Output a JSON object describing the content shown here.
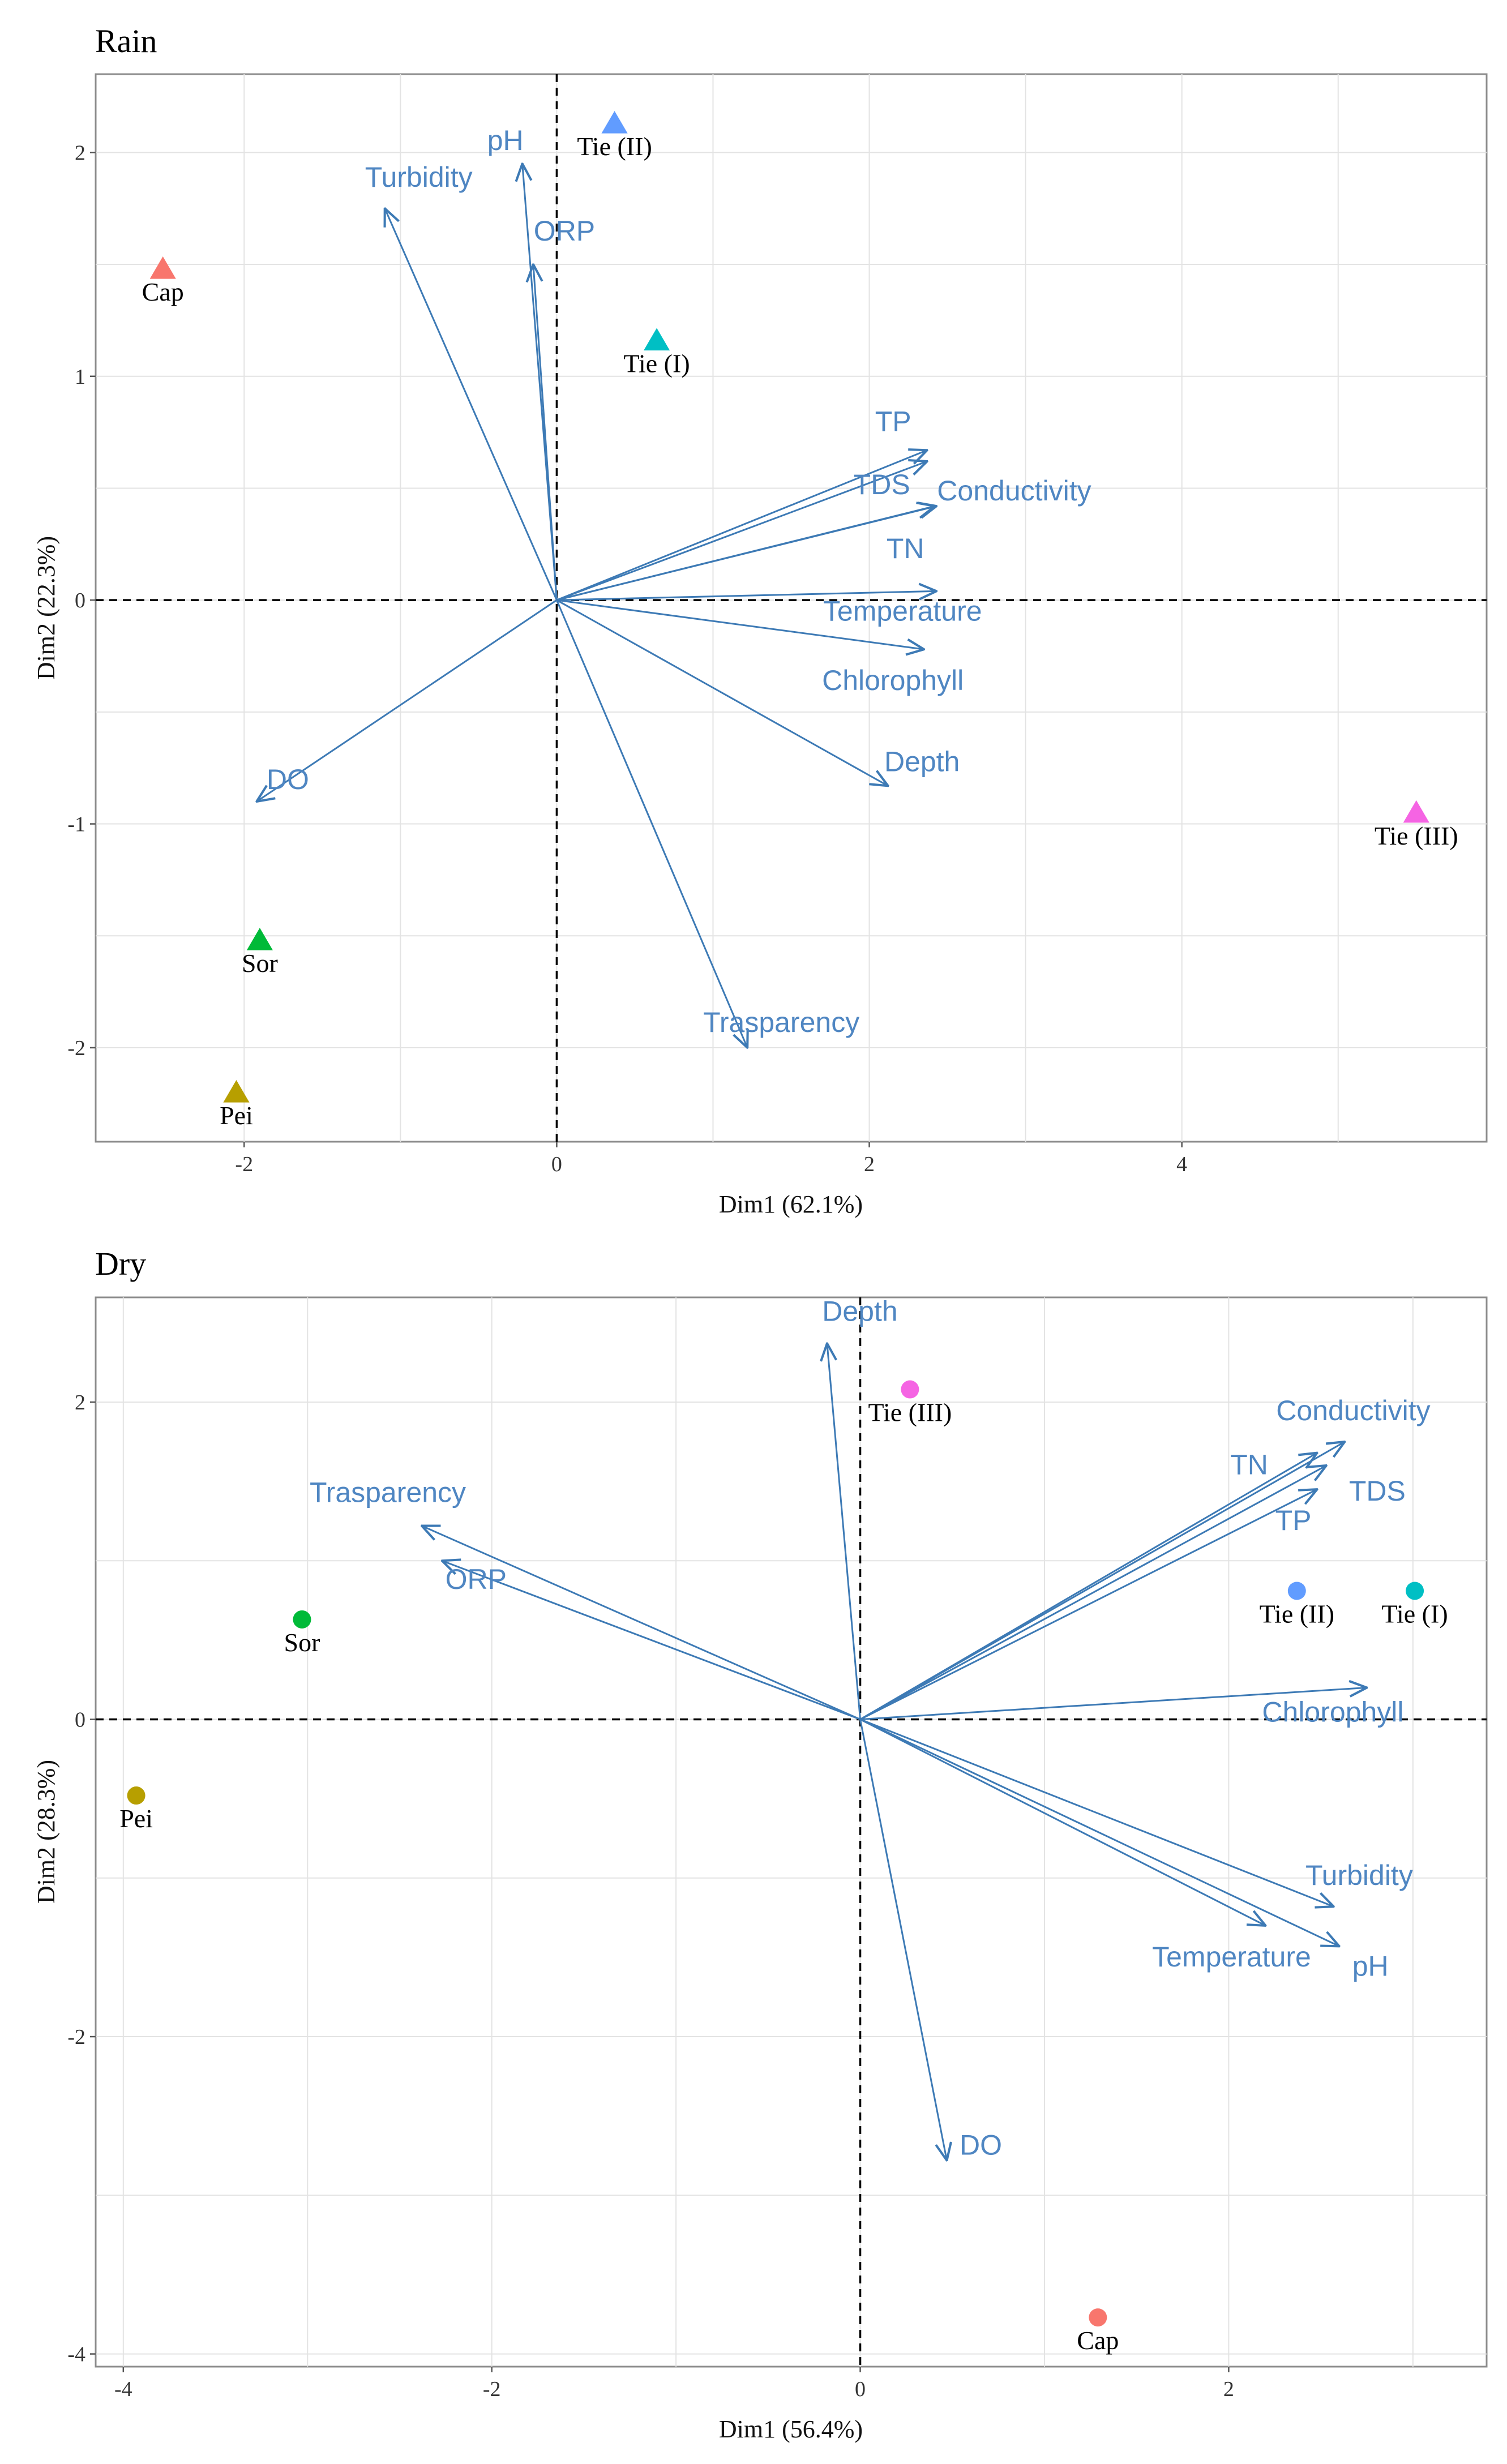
{
  "chart_data": [
    {
      "type": "scatter",
      "title": "Rain",
      "xlabel": "Dim1 (62.1%)",
      "ylabel": "Dim2 (22.3%)",
      "xlim": [
        -2.95,
        5.95
      ],
      "ylim": [
        -2.42,
        2.35
      ],
      "x_ticks": [
        -2,
        0,
        2,
        4
      ],
      "y_ticks": [
        -2,
        -1,
        0,
        1,
        2
      ],
      "x_tick_labels": [
        "-2",
        "0",
        "2",
        "4"
      ],
      "y_tick_labels": [
        "-2",
        "-1",
        "0",
        "1",
        "2"
      ],
      "marker": "triangle",
      "grid": true,
      "observations": [
        {
          "label": "Tie (II)",
          "x": 0.37,
          "y": 2.13,
          "color": "#619cff"
        },
        {
          "label": "Cap",
          "x": -2.52,
          "y": 1.48,
          "color": "#f8766d"
        },
        {
          "label": "Tie (I)",
          "x": 0.64,
          "y": 1.16,
          "color": "#00bfc4"
        },
        {
          "label": "Tie (III)",
          "x": 5.5,
          "y": -0.95,
          "color": "#f564e3"
        },
        {
          "label": "Sor",
          "x": -1.9,
          "y": -1.52,
          "color": "#00ba38"
        },
        {
          "label": "Pei",
          "x": -2.05,
          "y": -2.2,
          "color": "#b79f00"
        }
      ],
      "variables": [
        {
          "label": "Turbidity",
          "x": -1.1,
          "y": 1.75
        },
        {
          "label": "pH",
          "x": -0.22,
          "y": 1.95
        },
        {
          "label": "ORP",
          "x": -0.15,
          "y": 1.5
        },
        {
          "label": "TP",
          "x": 2.37,
          "y": 0.67
        },
        {
          "label": "TDS",
          "x": 2.37,
          "y": 0.62
        },
        {
          "label": "Conductivity",
          "x": 2.42,
          "y": 0.42
        },
        {
          "label": "TN",
          "x": 2.43,
          "y": 0.42
        },
        {
          "label": "Temperature",
          "x": 2.43,
          "y": 0.04
        },
        {
          "label": "Chlorophyll",
          "x": 2.35,
          "y": -0.22
        },
        {
          "label": "Depth",
          "x": 2.12,
          "y": -0.83
        },
        {
          "label": "DO",
          "x": -1.92,
          "y": -0.9
        },
        {
          "label": "Trasparency",
          "x": 1.22,
          "y": -2.0
        }
      ]
    },
    {
      "type": "scatter",
      "title": "Dry",
      "xlabel": "Dim1 (56.4%)",
      "ylabel": "Dim2 (28.3%)",
      "xlim": [
        -4.15,
        3.4
      ],
      "ylim": [
        -4.08,
        2.66
      ],
      "x_ticks": [
        -4,
        -2,
        0,
        2
      ],
      "y_ticks": [
        -4,
        -2,
        0,
        2
      ],
      "x_tick_labels": [
        "-4",
        "-2",
        "0",
        "2"
      ],
      "y_tick_labels": [
        "-4",
        "-2",
        "0",
        "2"
      ],
      "marker": "circle",
      "grid": true,
      "observations": [
        {
          "label": "Tie (III)",
          "x": 0.27,
          "y": 2.08,
          "color": "#f564e3"
        },
        {
          "label": "Tie (II)",
          "x": 2.37,
          "y": 0.81,
          "color": "#619cff"
        },
        {
          "label": "Tie (I)",
          "x": 3.01,
          "y": 0.81,
          "color": "#00bfc4"
        },
        {
          "label": "Sor",
          "x": -3.03,
          "y": 0.63,
          "color": "#00ba38"
        },
        {
          "label": "Pei",
          "x": -3.93,
          "y": -0.48,
          "color": "#b79f00"
        },
        {
          "label": "Cap",
          "x": 1.29,
          "y": -3.77,
          "color": "#f8766d"
        }
      ],
      "variables": [
        {
          "label": "Depth",
          "x": -0.18,
          "y": 2.37
        },
        {
          "label": "Conductivity",
          "x": 2.63,
          "y": 1.75
        },
        {
          "label": "TN",
          "x": 2.48,
          "y": 1.68
        },
        {
          "label": "TDS",
          "x": 2.53,
          "y": 1.6
        },
        {
          "label": "TP",
          "x": 2.48,
          "y": 1.45
        },
        {
          "label": "Trasparency",
          "x": -2.38,
          "y": 1.22
        },
        {
          "label": "ORP",
          "x": -2.27,
          "y": 1.0
        },
        {
          "label": "Chlorophyll",
          "x": 2.75,
          "y": 0.2
        },
        {
          "label": "Turbidity",
          "x": 2.57,
          "y": -1.18
        },
        {
          "label": "Temperature",
          "x": 2.2,
          "y": -1.3
        },
        {
          "label": "pH",
          "x": 2.6,
          "y": -1.43
        },
        {
          "label": "DO",
          "x": 0.47,
          "y": -2.78
        }
      ]
    }
  ]
}
